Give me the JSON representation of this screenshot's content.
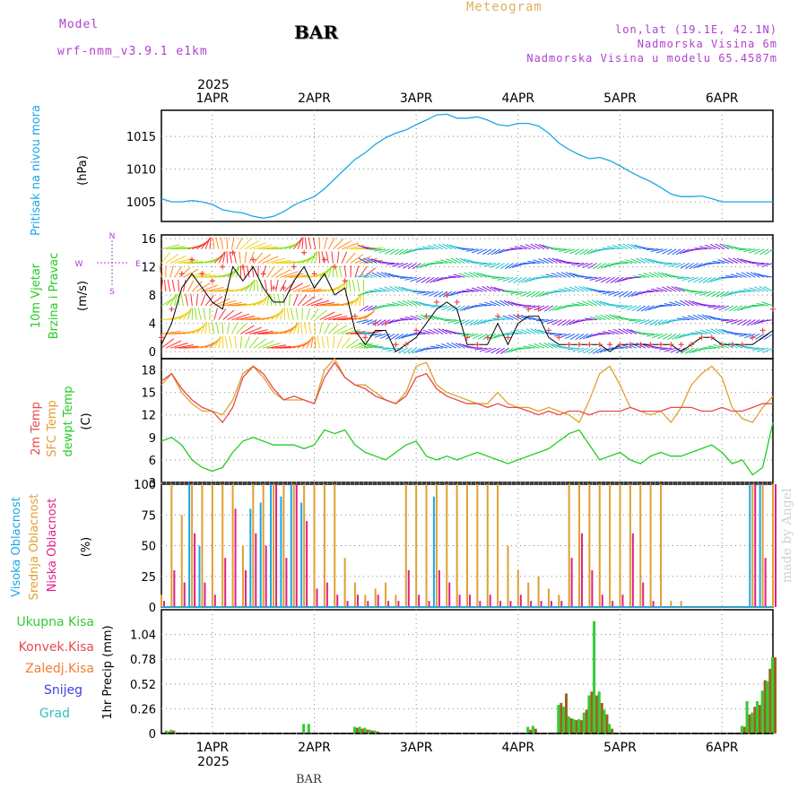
{
  "header": {
    "model_label": "Model",
    "model_name": "wrf-nmm_v3.9.1 e1km",
    "station": "BAR",
    "product": "Meteogram",
    "coords": "lon,lat (19.1E, 42.1N)",
    "elevation": "Nadmorska Visina 6m",
    "model_elevation": "Nadmorska Visina u modelu 65.4587m"
  },
  "footer": {
    "station": "BAR",
    "credit": "made by Angel"
  },
  "time_axis": {
    "year_label": "2025",
    "days": [
      "1APR",
      "2APR",
      "3APR",
      "4APR",
      "5APR",
      "6APR"
    ],
    "day_positions": [
      0.5,
      1.5,
      2.5,
      3.5,
      4.5,
      5.5
    ],
    "range": [
      0,
      6
    ]
  },
  "colors": {
    "pressure": "#1aa7e8",
    "temp2m": "#e84a4a",
    "sfc_temp": "#e0a030",
    "dewpt": "#22cc22",
    "high_cloud": "#1aa7e8",
    "mid_cloud": "#e0a030",
    "low_cloud": "#e0208a",
    "total_precip": "#33cc33",
    "conv_precip": "#e84a4a",
    "frz_precip": "#f08030",
    "snow": "#4040e0",
    "hail": "#30c0c0",
    "header_purple": "#b040d0",
    "product_orange": "#e0b060"
  },
  "chart_data": [
    {
      "type": "line",
      "panel": "pressure",
      "ylabel_lines": [
        "Pritisak na nivou mora",
        "(hPa)"
      ],
      "ylim": [
        1002,
        1019
      ],
      "yticks": [
        1005,
        1010,
        1015
      ],
      "x": [
        0,
        0.1,
        0.2,
        0.3,
        0.4,
        0.5,
        0.6,
        0.7,
        0.8,
        0.9,
        1.0,
        1.1,
        1.2,
        1.3,
        1.4,
        1.5,
        1.6,
        1.7,
        1.8,
        1.9,
        2.0,
        2.1,
        2.2,
        2.3,
        2.4,
        2.5,
        2.6,
        2.7,
        2.8,
        2.9,
        3.0,
        3.1,
        3.2,
        3.3,
        3.4,
        3.5,
        3.6,
        3.7,
        3.8,
        3.9,
        4.0,
        4.1,
        4.2,
        4.3,
        4.4,
        4.5,
        4.6,
        4.7,
        4.8,
        4.9,
        5.0,
        5.1,
        5.2,
        5.3,
        5.4,
        5.5,
        5.6,
        5.7,
        5.8,
        5.9,
        6.0
      ],
      "series": [
        {
          "values": [
            1005.5,
            1005.0,
            1005.0,
            1005.2,
            1005.0,
            1004.6,
            1003.8,
            1003.5,
            1003.3,
            1002.8,
            1002.5,
            1002.8,
            1003.5,
            1004.5,
            1005.2,
            1005.8,
            1007.0,
            1008.5,
            1010.0,
            1011.5,
            1012.5,
            1013.8,
            1014.8,
            1015.5,
            1016.0,
            1016.8,
            1017.5,
            1018.3,
            1018.4,
            1017.8,
            1017.8,
            1018.0,
            1017.5,
            1016.8,
            1016.6,
            1017.0,
            1017.0,
            1016.6,
            1015.5,
            1014.0,
            1013.0,
            1012.2,
            1011.6,
            1011.8,
            1011.3,
            1010.5,
            1009.6,
            1008.8,
            1008.1,
            1007.2,
            1006.2,
            1005.8,
            1005.8,
            1005.9,
            1005.5,
            1005.0,
            1005.0,
            1005.0,
            1005.0,
            1005.0,
            1005.0
          ]
        }
      ]
    },
    {
      "type": "line",
      "panel": "wind",
      "ylabel_lines": [
        "10m Vjetar",
        "Brzina i Pravac",
        "(m/s)"
      ],
      "legend_compass": [
        "N",
        "S",
        "W",
        "E"
      ],
      "ylim": [
        -1,
        16.5
      ],
      "yticks": [
        0,
        4,
        8,
        12,
        16
      ],
      "x": [
        0,
        0.1,
        0.2,
        0.3,
        0.4,
        0.5,
        0.6,
        0.7,
        0.8,
        0.9,
        1.0,
        1.1,
        1.2,
        1.3,
        1.4,
        1.5,
        1.6,
        1.7,
        1.8,
        1.9,
        2.0,
        2.1,
        2.2,
        2.3,
        2.4,
        2.5,
        2.6,
        2.7,
        2.8,
        2.9,
        3.0,
        3.1,
        3.2,
        3.3,
        3.4,
        3.5,
        3.6,
        3.7,
        3.8,
        3.9,
        4.0,
        4.1,
        4.2,
        4.3,
        4.4,
        4.5,
        4.6,
        4.7,
        4.8,
        4.9,
        5.0,
        5.1,
        5.2,
        5.3,
        5.4,
        5.5,
        5.6,
        5.7,
        5.8,
        5.9,
        6.0
      ],
      "series": [
        {
          "values": [
            1,
            4,
            9,
            11,
            9,
            7,
            6,
            12,
            10,
            12,
            9,
            7,
            7,
            10,
            12,
            9,
            11,
            8,
            9,
            3,
            1,
            3,
            3,
            0,
            1,
            2,
            4,
            6,
            7,
            6,
            1,
            1,
            1,
            4,
            1,
            4,
            5,
            5,
            2,
            1,
            1,
            1,
            1,
            1,
            0,
            1,
            1,
            1,
            1,
            1,
            1,
            0,
            1,
            2,
            2,
            1,
            1,
            1,
            1,
            2,
            3
          ]
        },
        {
          "values": [
            2,
            6,
            11,
            13,
            11,
            10,
            12,
            14,
            12,
            13,
            11,
            9,
            9,
            12,
            14,
            11,
            13,
            12,
            10,
            5,
            2,
            4,
            4,
            1,
            1,
            3,
            5,
            7,
            8,
            7,
            2,
            1,
            2,
            5,
            2,
            5,
            6,
            6,
            3,
            2,
            1,
            1,
            1,
            1,
            1,
            1,
            1,
            1,
            1,
            1,
            1,
            1,
            1,
            2,
            2,
            1,
            1,
            1,
            2,
            3,
            6
          ]
        }
      ]
    },
    {
      "type": "line",
      "panel": "temperature",
      "ylabel_lines": [
        "2m Temp",
        "SFC Temp",
        "dewpt Temp",
        "(C)"
      ],
      "ylim": [
        3,
        19.5
      ],
      "yticks": [
        3,
        6,
        9,
        12,
        15,
        18
      ],
      "x": [
        0,
        0.1,
        0.2,
        0.3,
        0.4,
        0.5,
        0.6,
        0.7,
        0.8,
        0.9,
        1.0,
        1.1,
        1.2,
        1.3,
        1.4,
        1.5,
        1.6,
        1.7,
        1.8,
        1.9,
        2.0,
        2.1,
        2.2,
        2.3,
        2.4,
        2.5,
        2.6,
        2.7,
        2.8,
        2.9,
        3.0,
        3.1,
        3.2,
        3.3,
        3.4,
        3.5,
        3.6,
        3.7,
        3.8,
        3.9,
        4.0,
        4.1,
        4.2,
        4.3,
        4.4,
        4.5,
        4.6,
        4.7,
        4.8,
        4.9,
        5.0,
        5.1,
        5.2,
        5.3,
        5.4,
        5.5,
        5.6,
        5.7,
        5.8,
        5.9,
        6.0
      ],
      "series": [
        {
          "name": "2m Temp",
          "values": [
            16.5,
            17.5,
            15.5,
            14,
            13,
            12.5,
            11,
            13,
            17,
            18.5,
            17.5,
            15.5,
            14,
            14.5,
            14,
            13.5,
            17,
            19,
            17,
            16,
            15.5,
            14.5,
            14,
            13.5,
            14.5,
            17,
            17.5,
            15.5,
            14.5,
            14,
            13.5,
            13.5,
            13,
            13.5,
            13,
            13,
            12.5,
            12,
            12.5,
            12,
            12.5,
            12.5,
            12,
            12.5,
            12.5,
            12.5,
            13,
            12.5,
            12.5,
            12.5,
            13,
            13,
            13,
            12.5,
            12.5,
            13,
            12.5,
            12.5,
            13,
            13.5,
            13.5
          ]
        },
        {
          "name": "SFC Temp",
          "values": [
            16,
            17.5,
            15,
            13.5,
            12.5,
            12.5,
            12,
            14,
            17.5,
            18.5,
            17,
            15,
            14,
            14,
            14,
            13.5,
            18,
            19.5,
            17,
            16,
            16,
            15,
            14,
            13.5,
            15,
            18.5,
            19,
            16,
            15,
            14.5,
            14,
            13.5,
            13.5,
            15,
            13.5,
            13,
            13,
            12.5,
            13,
            12.5,
            12,
            11,
            14,
            17.5,
            18.5,
            16,
            13,
            12.5,
            12,
            12.5,
            11,
            13,
            16,
            17.5,
            18.5,
            17,
            13,
            11.5,
            11,
            13,
            14.5
          ]
        },
        {
          "name": "dewpt Temp",
          "values": [
            8.5,
            9,
            8,
            6,
            5,
            4.5,
            5,
            7,
            8.5,
            9,
            8.5,
            8,
            8,
            8,
            7.5,
            8,
            10,
            9.5,
            10,
            8,
            7,
            6.5,
            6,
            7,
            8,
            8.5,
            6.5,
            6,
            6.5,
            6,
            6.5,
            7,
            6.5,
            6,
            5.5,
            6,
            6.5,
            7,
            7.5,
            8.5,
            9.5,
            10,
            8,
            6,
            6.5,
            7,
            6,
            5.5,
            6.5,
            7,
            6.5,
            6.5,
            7,
            7.5,
            8,
            7,
            5.5,
            6,
            4,
            5,
            11
          ]
        }
      ]
    },
    {
      "type": "bar",
      "panel": "cloud",
      "ylabel_lines": [
        "Visoka Oblacnost",
        "Srednja Oblacnost",
        "Niska Oblacnost",
        "(%)"
      ],
      "ylim": [
        0,
        100
      ],
      "yticks": [
        0,
        25,
        50,
        75,
        100
      ],
      "x": [
        0,
        0.1,
        0.2,
        0.3,
        0.4,
        0.5,
        0.6,
        0.7,
        0.8,
        0.9,
        1.0,
        1.1,
        1.2,
        1.3,
        1.4,
        1.5,
        1.6,
        1.7,
        1.8,
        1.9,
        2.0,
        2.1,
        2.2,
        2.3,
        2.4,
        2.5,
        2.6,
        2.7,
        2.8,
        2.9,
        3.0,
        3.1,
        3.2,
        3.3,
        3.4,
        3.5,
        3.6,
        3.7,
        3.8,
        3.9,
        4.0,
        4.1,
        4.2,
        4.3,
        4.4,
        4.5,
        4.6,
        4.7,
        4.8,
        4.9,
        5.0,
        5.1,
        5.2,
        5.3,
        5.4,
        5.5,
        5.6,
        5.7,
        5.8,
        5.9,
        6.0
      ],
      "series": [
        {
          "name": "Visoka Oblacnost",
          "values": [
            0,
            0,
            0,
            100,
            50,
            0,
            0,
            0,
            0,
            80,
            85,
            100,
            90,
            100,
            85,
            0,
            0,
            0,
            0,
            0,
            0,
            0,
            0,
            0,
            0,
            0,
            0,
            90,
            0,
            0,
            0,
            0,
            0,
            0,
            0,
            0,
            0,
            0,
            0,
            0,
            0,
            0,
            0,
            0,
            0,
            0,
            0,
            0,
            0,
            0,
            0,
            0,
            0,
            0,
            0,
            0,
            0,
            0,
            100,
            100,
            0
          ]
        },
        {
          "name": "Srednja Oblacnost",
          "values": [
            10,
            100,
            75,
            100,
            100,
            100,
            100,
            100,
            50,
            100,
            100,
            100,
            100,
            100,
            100,
            100,
            100,
            100,
            40,
            20,
            10,
            15,
            20,
            10,
            100,
            100,
            100,
            100,
            100,
            100,
            100,
            100,
            100,
            100,
            50,
            30,
            20,
            25,
            15,
            10,
            100,
            100,
            100,
            100,
            100,
            100,
            100,
            100,
            100,
            100,
            5,
            5,
            0,
            0,
            0,
            0,
            0,
            0,
            100,
            100,
            100
          ]
        },
        {
          "name": "Niska Oblacnost",
          "values": [
            5,
            30,
            20,
            60,
            20,
            10,
            40,
            80,
            30,
            60,
            50,
            100,
            40,
            100,
            70,
            15,
            20,
            10,
            5,
            10,
            5,
            10,
            5,
            5,
            30,
            10,
            5,
            30,
            20,
            10,
            10,
            5,
            10,
            5,
            5,
            10,
            5,
            5,
            5,
            5,
            40,
            60,
            30,
            10,
            5,
            10,
            60,
            20,
            5,
            0,
            0,
            0,
            0,
            0,
            0,
            0,
            0,
            0,
            100,
            40,
            100
          ]
        }
      ]
    },
    {
      "type": "bar",
      "panel": "precipitation",
      "ylabel_lines": [
        "1hr Precip (mm)"
      ],
      "legend": [
        "Ukupna Kisa",
        "Konvek.Kisa",
        "Zaledj.Kisa",
        "Snijeg",
        "Grad"
      ],
      "ylim": [
        0,
        1.3
      ],
      "yticks": [
        0,
        0.26,
        0.52,
        0.78,
        1.04
      ],
      "x": [
        0.05,
        0.1,
        1.4,
        1.45,
        1.9,
        1.95,
        2.0,
        2.05,
        2.1,
        3.6,
        3.65,
        3.9,
        3.95,
        4.0,
        4.05,
        4.1,
        4.15,
        4.2,
        4.25,
        4.3,
        4.35,
        4.4,
        5.7,
        5.75,
        5.8,
        5.85,
        5.9,
        5.95,
        6.0
      ],
      "series": [
        {
          "name": "Ukupna Kisa",
          "values": [
            0.03,
            0.04,
            0.1,
            0.1,
            0.07,
            0.07,
            0.06,
            0.04,
            0.03,
            0.07,
            0.08,
            0.3,
            0.28,
            0.18,
            0.15,
            0.15,
            0.22,
            0.4,
            1.18,
            0.44,
            0.25,
            0.1,
            0.08,
            0.34,
            0.22,
            0.34,
            0.45,
            0.55,
            0.8
          ]
        },
        {
          "name": "Konvek.Kisa",
          "values": [
            0.02,
            0.03,
            0.0,
            0.0,
            0.06,
            0.05,
            0.04,
            0.03,
            0.02,
            0.04,
            0.05,
            0.32,
            0.42,
            0.16,
            0.14,
            0.14,
            0.25,
            0.44,
            0.4,
            0.32,
            0.2,
            0.05,
            0.07,
            0.2,
            0.28,
            0.3,
            0.56,
            0.68,
            0.8
          ]
        },
        {
          "name": "Zaledj.Kisa",
          "values": [
            0,
            0,
            0,
            0,
            0,
            0,
            0,
            0,
            0,
            0,
            0,
            0,
            0,
            0,
            0,
            0,
            0,
            0,
            0,
            0,
            0,
            0,
            0,
            0,
            0,
            0,
            0,
            0,
            0
          ]
        },
        {
          "name": "Snijeg",
          "values": [
            0,
            0,
            0,
            0,
            0,
            0,
            0,
            0,
            0,
            0,
            0,
            0,
            0,
            0,
            0,
            0,
            0,
            0,
            0,
            0,
            0,
            0,
            0,
            0,
            0,
            0,
            0,
            0,
            0
          ]
        },
        {
          "name": "Grad",
          "values": [
            0,
            0,
            0,
            0,
            0,
            0,
            0,
            0,
            0,
            0,
            0,
            0,
            0,
            0,
            0,
            0,
            0,
            0,
            0,
            0,
            0,
            0,
            0,
            0,
            0,
            0,
            0,
            0,
            0
          ]
        }
      ]
    }
  ]
}
